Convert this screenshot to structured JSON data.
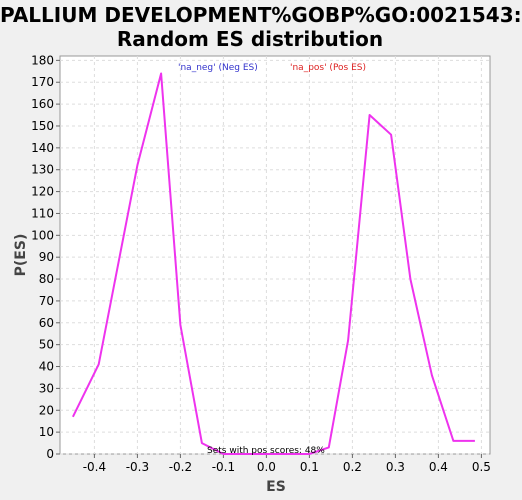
{
  "chart_data": {
    "type": "line",
    "title_line1": "PALLIUM DEVELOPMENT%GOBP%GO:0021543:",
    "title_line2": "Random ES distribution",
    "xlabel": "ES",
    "ylabel": "P(ES)",
    "xlim": [
      -0.48,
      0.52
    ],
    "ylim": [
      0,
      182
    ],
    "x_ticks": [
      -0.4,
      -0.3,
      -0.2,
      -0.1,
      0.0,
      0.1,
      0.2,
      0.3,
      0.4,
      0.5
    ],
    "x_tick_labels": [
      "-0.4",
      "-0.3",
      "-0.2",
      "-0.1",
      "0.0",
      "0.1",
      "0.2",
      "0.3",
      "0.4",
      "0.5"
    ],
    "y_ticks": [
      0,
      10,
      20,
      30,
      40,
      50,
      60,
      70,
      80,
      90,
      100,
      110,
      120,
      130,
      140,
      150,
      160,
      170,
      180
    ],
    "grid": true,
    "legend_placement": "top-center",
    "legend": [
      {
        "label": "'na_neg' (Neg ES)",
        "color": "#3333cc"
      },
      {
        "label": "'na_pos' (Pos ES)",
        "color": "#dd2222"
      }
    ],
    "annotation": "Sets with pos scores: 48%",
    "series": [
      {
        "color": "#ee33ee",
        "x": [
          -0.45,
          -0.39,
          -0.3,
          -0.245,
          -0.2,
          -0.15,
          -0.1,
          0.0,
          0.1,
          0.145,
          0.19,
          0.24,
          0.29,
          0.335,
          0.385,
          0.435,
          0.485
        ],
        "y": [
          17,
          41,
          132,
          174,
          59,
          5,
          0,
          0,
          0,
          3,
          52,
          155,
          146,
          80,
          36,
          6,
          6
        ]
      }
    ]
  }
}
